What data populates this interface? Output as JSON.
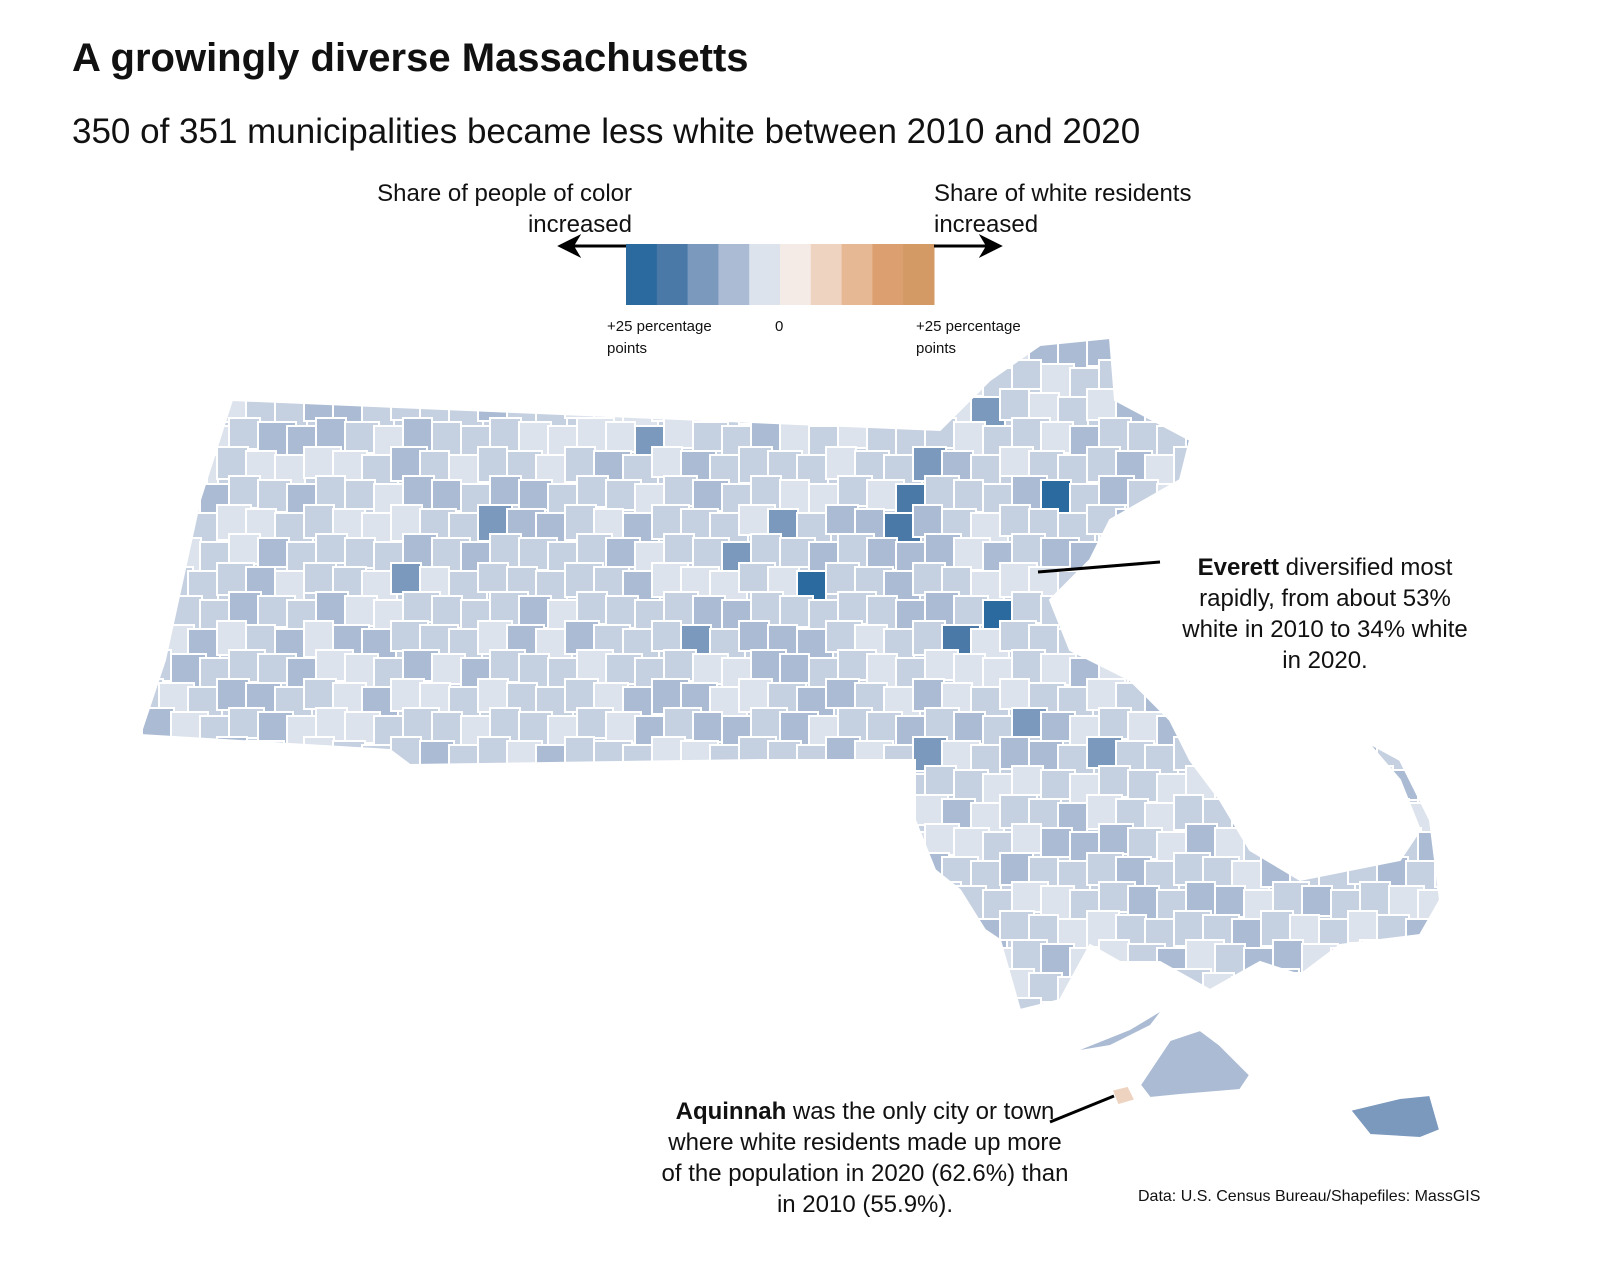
{
  "title": "A growingly diverse Massachusetts",
  "subtitle": "350 of 351 municipalities became less white between 2010 and 2020",
  "legend": {
    "left_label": "Share of people of color increased",
    "right_label": "Share of white residents increased",
    "left_tick": "+25 percentage points",
    "center_tick": "0",
    "right_tick": "+25 percentage points",
    "colors": [
      "#2a6a9e",
      "#4a79a8",
      "#7b98bd",
      "#aabbd3",
      "#dde3ec",
      "#f5ebe6",
      "#efd3c1",
      "#e6b994",
      "#dca070",
      "#d39a66"
    ]
  },
  "annotations": {
    "everett_bold": "Everett",
    "everett_text": " diversified most rapidly, from about 53% white in 2010 to 34% white in 2020.",
    "aquinnah_bold": "Aquinnah",
    "aquinnah_text": " was the only city or town where white residents made up more of the population in 2020 (62.6%) than in 2010 (55.9%)."
  },
  "source": "Data: U.S. Census Bureau/Shapefiles: MassGIS",
  "map_colors": {
    "base": "#c5d0e1",
    "light": "#dde3ec",
    "mid": "#aabbd3",
    "dark": "#7b98bd",
    "darker": "#4a79a8",
    "darkest": "#2a6a9e",
    "increase": "#efd3c1"
  }
}
